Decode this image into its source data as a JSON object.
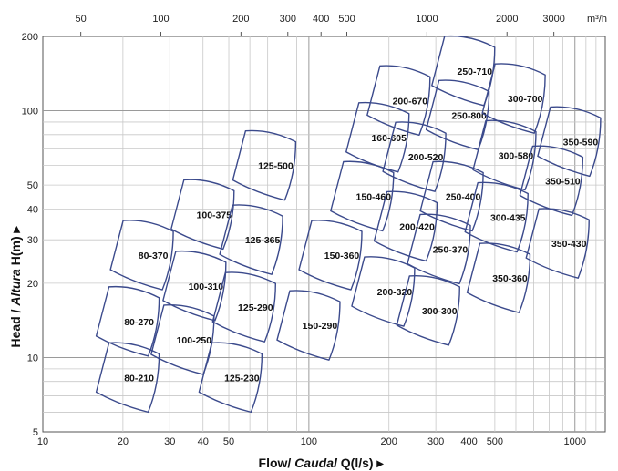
{
  "chart_data": {
    "type": "scatter",
    "title": "",
    "xlabel": {
      "main": "Flow/",
      "italic": "Caudal",
      "tail": "Q(l/s)",
      "arrow": "▸"
    },
    "ylabel": {
      "main": "Head /",
      "italic": "Altura",
      "tail": "H(m)",
      "arrow": "▸"
    },
    "x_scale": "log",
    "y_scale": "log",
    "xlim": [
      10,
      1300
    ],
    "ylim": [
      5,
      200
    ],
    "grid": true,
    "x_ticks": [
      "10",
      "20",
      "30",
      "40",
      "50",
      "100",
      "200",
      "300",
      "400",
      "500",
      "1000"
    ],
    "y_ticks": [
      "5",
      "10",
      "20",
      "30",
      "40",
      "50",
      "100",
      "200"
    ],
    "top_axis": {
      "unit": "m³/h",
      "ticks": [
        "50",
        "100",
        "200",
        "300",
        "400",
        "500",
        "1000",
        "2000",
        "3000"
      ]
    },
    "region_color": "#3b4a8c",
    "regions": [
      {
        "label": "80-210",
        "flow": 23,
        "head": 8.3
      },
      {
        "label": "80-270",
        "flow": 23,
        "head": 14
      },
      {
        "label": "80-370",
        "flow": 26,
        "head": 26
      },
      {
        "label": "100-250",
        "flow": 37,
        "head": 11.8
      },
      {
        "label": "100-310",
        "flow": 41,
        "head": 19.5
      },
      {
        "label": "100-375",
        "flow": 44,
        "head": 38
      },
      {
        "label": "125-230",
        "flow": 56,
        "head": 8.3
      },
      {
        "label": "125-290",
        "flow": 63,
        "head": 16
      },
      {
        "label": "125-365",
        "flow": 67,
        "head": 30
      },
      {
        "label": "125-500",
        "flow": 75,
        "head": 60
      },
      {
        "label": "150-290",
        "flow": 110,
        "head": 13.5
      },
      {
        "label": "150-360",
        "flow": 133,
        "head": 26
      },
      {
        "label": "150-460",
        "flow": 175,
        "head": 45
      },
      {
        "label": "160-605",
        "flow": 200,
        "head": 78
      },
      {
        "label": "200-320",
        "flow": 210,
        "head": 18.5
      },
      {
        "label": "200-420",
        "flow": 255,
        "head": 34
      },
      {
        "label": "200-520",
        "flow": 275,
        "head": 65
      },
      {
        "label": "200-670",
        "flow": 240,
        "head": 110
      },
      {
        "label": "250-370",
        "flow": 340,
        "head": 27.5
      },
      {
        "label": "250-400",
        "flow": 380,
        "head": 45
      },
      {
        "label": "250-800",
        "flow": 400,
        "head": 96
      },
      {
        "label": "250-710",
        "flow": 420,
        "head": 145
      },
      {
        "label": "300-300",
        "flow": 310,
        "head": 15.5
      },
      {
        "label": "300-435",
        "flow": 560,
        "head": 37
      },
      {
        "label": "300-580",
        "flow": 600,
        "head": 66
      },
      {
        "label": "300-700",
        "flow": 650,
        "head": 112
      },
      {
        "label": "350-360",
        "flow": 570,
        "head": 21
      },
      {
        "label": "350-430",
        "flow": 950,
        "head": 29
      },
      {
        "label": "350-510",
        "flow": 900,
        "head": 52
      },
      {
        "label": "350-590",
        "flow": 1050,
        "head": 75
      }
    ]
  }
}
